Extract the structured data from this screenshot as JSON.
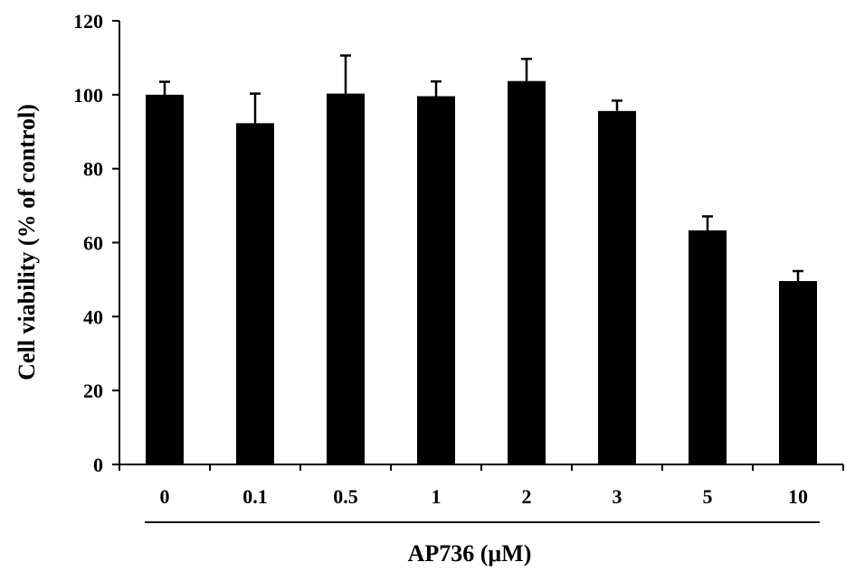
{
  "chart_data": {
    "type": "bar",
    "title": "",
    "xlabel": "AP736 (μM)",
    "ylabel": "Cell viability (% of control)",
    "categories": [
      "0",
      "0.1",
      "0.5",
      "1",
      "2",
      "3",
      "5",
      "10"
    ],
    "values": [
      100,
      92.3,
      100.3,
      99.6,
      103.7,
      95.6,
      63.3,
      49.6
    ],
    "errors": [
      3.5,
      8.0,
      10.3,
      4.0,
      6.0,
      2.8,
      3.8,
      2.7
    ],
    "ylim": [
      0,
      120
    ],
    "yticks": [
      0,
      20,
      40,
      60,
      80,
      100,
      120
    ],
    "grid": false,
    "bar_color": "#000000"
  }
}
